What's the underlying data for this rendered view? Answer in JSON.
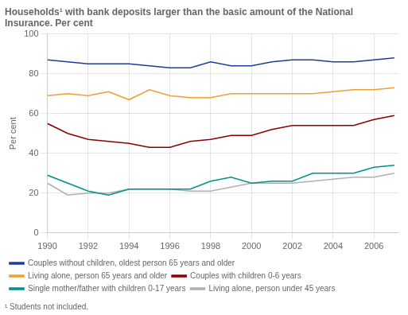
{
  "chart_data": {
    "type": "line",
    "title": "Households¹ with bank deposits larger than the basic amount of the National Insurance. Per cent",
    "ylabel": "Per cent",
    "annotations": [
      "¹ Students not included."
    ],
    "x": [
      1990,
      1991,
      1992,
      1993,
      1994,
      1995,
      1996,
      1997,
      1998,
      1999,
      2000,
      2001,
      2002,
      2003,
      2004,
      2005,
      2006,
      2007
    ],
    "series": [
      {
        "name": "Couples without children, oldest person 65 years and older",
        "color": "#1f3d99",
        "values": [
          87,
          86,
          85,
          85,
          85,
          84,
          83,
          83,
          86,
          84,
          84,
          86,
          87,
          87,
          86,
          86,
          87,
          88
        ]
      },
      {
        "name": "Living alone, person 65 years and older",
        "color": "#f0a030",
        "values": [
          69,
          70,
          69,
          71,
          67,
          72,
          69,
          68,
          68,
          70,
          70,
          70,
          70,
          70,
          71,
          72,
          72,
          73
        ]
      },
      {
        "name": "Couples with children 0-6 years",
        "color": "#8b0000",
        "values": [
          55,
          50,
          47,
          46,
          45,
          43,
          43,
          46,
          47,
          49,
          49,
          52,
          54,
          54,
          54,
          54,
          57,
          59
        ]
      },
      {
        "name": "Single mother/father with children 0-17 years",
        "color": "#009090",
        "values": [
          29,
          25,
          21,
          19,
          22,
          22,
          22,
          22,
          26,
          28,
          25,
          26,
          26,
          30,
          30,
          30,
          33,
          34
        ]
      },
      {
        "name": "Living alone, person under 45 years",
        "color": "#b0b0b0",
        "values": [
          25,
          19,
          20,
          20,
          22,
          22,
          22,
          21,
          21,
          23,
          25,
          25,
          25,
          26,
          27,
          28,
          28,
          30
        ]
      }
    ],
    "xlim": [
      1990,
      2007.2
    ],
    "xticks": [
      1990,
      1992,
      1994,
      1996,
      1998,
      2000,
      2002,
      2004,
      2006
    ],
    "ylim": [
      0,
      100
    ],
    "yticks": [
      0,
      20,
      40,
      60,
      80,
      100
    ],
    "grid": true,
    "legend": "bottom"
  }
}
